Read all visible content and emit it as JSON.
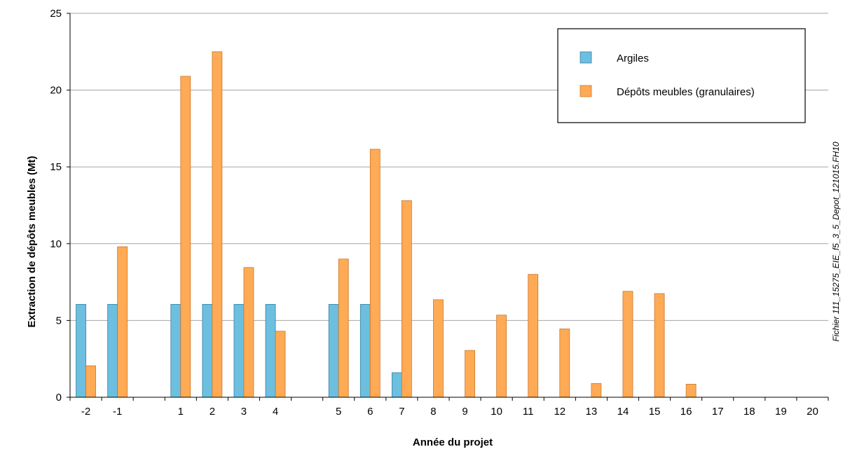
{
  "chart_data": {
    "type": "bar",
    "xlabel": "Année du projet",
    "ylabel": "Extraction de dépôts meubles (Mt)",
    "ylim": [
      0,
      25
    ],
    "yticks": [
      0,
      5,
      10,
      15,
      20,
      25
    ],
    "grid": true,
    "legend_position": "top-right",
    "categories": [
      "-2",
      "-1",
      "",
      "1",
      "2",
      "3",
      "4",
      "",
      "5",
      "6",
      "7",
      "8",
      "9",
      "10",
      "11",
      "12",
      "13",
      "14",
      "15",
      "16",
      "17",
      "18",
      "19",
      "20"
    ],
    "series": [
      {
        "name": "Argiles",
        "color": "#6cbfdf",
        "values": [
          6.05,
          6.05,
          null,
          6.05,
          6.05,
          6.05,
          6.05,
          null,
          6.05,
          6.05,
          1.6,
          0,
          0,
          0,
          0,
          0,
          0,
          0,
          0,
          0,
          0,
          0,
          0,
          0
        ]
      },
      {
        "name": "Dépôts meubles (granulaires)",
        "color": "#ffaa55",
        "values": [
          2.05,
          9.8,
          null,
          20.9,
          22.5,
          8.45,
          4.3,
          null,
          9.0,
          16.15,
          12.8,
          6.35,
          3.05,
          5.35,
          8.0,
          4.45,
          0.9,
          6.9,
          6.75,
          0.85,
          0,
          0,
          0,
          0
        ]
      }
    ],
    "side_note": "Fichier 111_15275_EIE_f5_3_5_Depot_121015.FH10"
  }
}
